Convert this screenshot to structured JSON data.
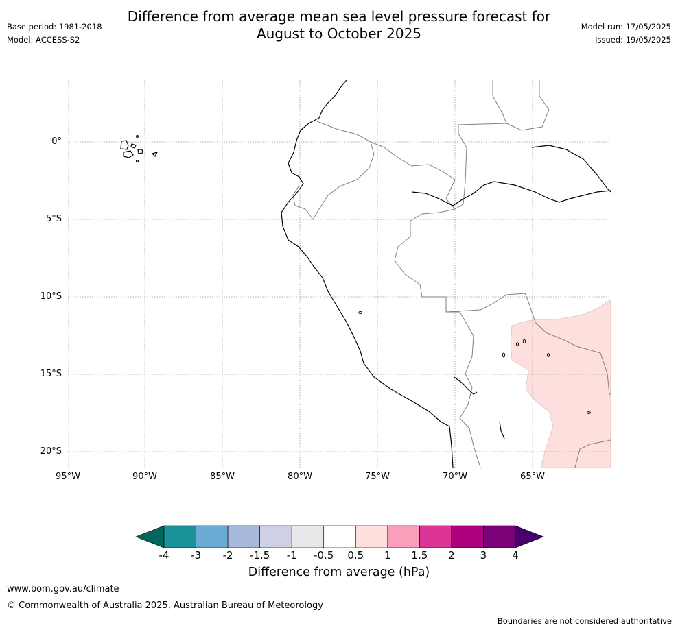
{
  "title_line1": "Difference from average mean sea level pressure forecast for",
  "title_line2": "August to October 2025",
  "header_left": {
    "base_period": "Base period: 1981-2018",
    "model": "Model: ACCESS-S2"
  },
  "header_right": {
    "model_run": "Model run: 17/05/2025",
    "issued": "Issued: 19/05/2025"
  },
  "map": {
    "lat_ticks": [
      "0°",
      "5°S",
      "10°S",
      "15°S",
      "20°S"
    ],
    "lon_ticks": [
      "95°W",
      "90°W",
      "85°W",
      "80°W",
      "75°W",
      "70°W",
      "65°W"
    ],
    "anomaly_region_color": "#fde0dd",
    "coastline_color": "#000000",
    "border_color": "#808080",
    "grid_color": "#999999"
  },
  "colorbar": {
    "ticks": [
      "-4",
      "-3",
      "-2",
      "-1.5",
      "-1",
      "-0.5",
      "0.5",
      "1",
      "1.5",
      "2",
      "3",
      "4"
    ],
    "colors": [
      "#01665e",
      "#1a9298",
      "#6aaad5",
      "#a6b9db",
      "#cfd0e6",
      "#e8e7ea",
      "#ffffff",
      "#fde0dd",
      "#f99fba",
      "#dd3497",
      "#ae017e",
      "#7a0177",
      "#49006a"
    ],
    "label": "Difference from average (hPa)"
  },
  "footer": {
    "website": "www.bom.gov.au/climate",
    "copyright": "© Commonwealth of Australia 2025, Australian Bureau of Meteorology",
    "boundary_note": "Boundaries are not considered authoritative"
  }
}
